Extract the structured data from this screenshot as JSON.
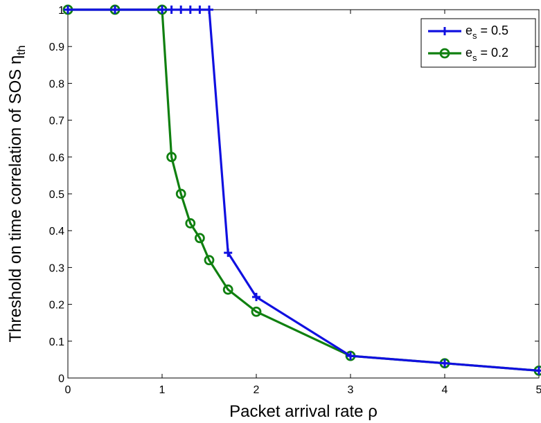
{
  "chart_data": {
    "type": "line",
    "xlabel": "Packet arrival rate",
    "xlabel_symbol": "ρ",
    "ylabel": "Threshold on time correlation of SOS",
    "ylabel_symbol": "η",
    "ylabel_subscript": "th",
    "xlim": [
      0,
      5
    ],
    "ylim": [
      0,
      1
    ],
    "xticks": [
      "0",
      "1",
      "2",
      "3",
      "4",
      "5"
    ],
    "yticks": [
      "0",
      "0.1",
      "0.2",
      "0.3",
      "0.4",
      "0.5",
      "0.6",
      "0.7",
      "0.8",
      "0.9",
      "1"
    ],
    "grid": false,
    "legend_position": "top-right",
    "series": [
      {
        "name": "e_s = 0.5",
        "legend_base": "e",
        "legend_sub": "s",
        "legend_rest": " = 0.5",
        "color": "#1010e0",
        "marker": "plus",
        "x": [
          0,
          0.5,
          1,
          1.1,
          1.2,
          1.3,
          1.4,
          1.5,
          1.7,
          2,
          3,
          4,
          5
        ],
        "y": [
          1,
          1,
          1,
          1,
          1,
          1,
          1,
          1,
          0.34,
          0.22,
          0.06,
          0.04,
          0.02
        ]
      },
      {
        "name": "e_s = 0.2",
        "legend_base": "e",
        "legend_sub": "s",
        "legend_rest": " = 0.2",
        "color": "#108010",
        "marker": "circle",
        "x": [
          0,
          0.5,
          1,
          1.1,
          1.2,
          1.3,
          1.4,
          1.5,
          1.7,
          2,
          3,
          4,
          5
        ],
        "y": [
          1,
          1,
          1,
          0.6,
          0.5,
          0.42,
          0.38,
          0.32,
          0.24,
          0.18,
          0.06,
          0.04,
          0.02
        ]
      }
    ]
  }
}
